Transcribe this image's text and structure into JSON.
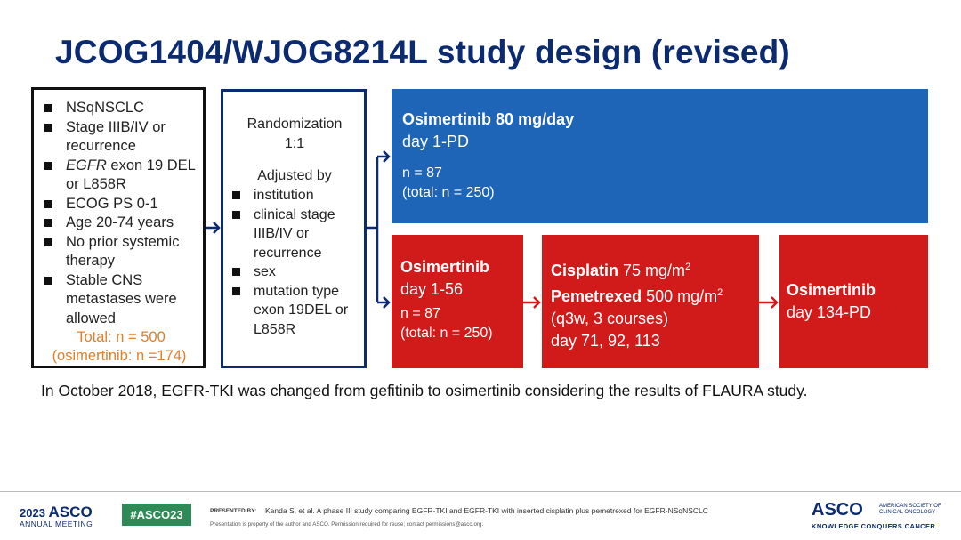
{
  "title": "JCOG1404/WJOG8214L study design (revised)",
  "eligibility": {
    "items": [
      "NSqNSCLC",
      "Stage IIIB/IV or recurrence",
      "EGFR exon 19 DEL or L858R",
      "ECOG PS 0-1",
      "Age 20-74 years",
      "No prior systemic therapy",
      "Stable CNS metastases were allowed"
    ],
    "egfr_italic": "EGFR",
    "egfr_rest": " exon 19 DEL or L858R",
    "total": "Total: n = 500",
    "total_osi": "(osimertinib: n =174)"
  },
  "randomization": {
    "title": "Randomization",
    "ratio": "1:1",
    "adjusted": "Adjusted by",
    "factors": [
      "institution",
      "clinical stage IIIB/IV or recurrence",
      "sex",
      "mutation type exon 19DEL or L858R"
    ]
  },
  "arm_a": {
    "drug": "Osimertinib",
    "dose": "80 mg/day",
    "days": "day 1-PD",
    "n": "n = 87",
    "total": "(total: n = 250)"
  },
  "arm_b": {
    "phase1": {
      "drug": "Osimertinib",
      "days": "day 1-56",
      "n": "n = 87",
      "total": "(total: n = 250)"
    },
    "phase2": {
      "drug1": "Cisplatin",
      "dose1": "75 mg/m",
      "drug2": "Pemetrexed",
      "dose2": "500 mg/m",
      "sup": "2",
      "schedule": "(q3w, 3 courses)",
      "days": "day 71, 92, 113"
    },
    "phase3": {
      "drug": "Osimertinib",
      "days": "day 134-PD"
    }
  },
  "note": "In October  2018, EGFR-TKI was changed from gefitinib to osimertinib considering the results of FLAURA study.",
  "footer": {
    "meeting_year": "2023",
    "meeting_brand": "ASCO",
    "meeting_sub": "ANNUAL MEETING",
    "hashtag": "#ASCO23",
    "presented_by": "PRESENTED BY:",
    "citation": "Kanda S, et al. A phase III study comparing EGFR-TKI and EGFR-TKI with inserted cisplatin plus pemetrexed for EGFR-NSqNSCLC",
    "permission": "Presentation is property of the author and ASCO. Permission required for reuse; contact permissions@asco.org.",
    "asco_logo": "ASCO",
    "asco_society": "AMERICAN SOCIETY OF CLINICAL ONCOLOGY",
    "tagline": "KNOWLEDGE CONQUERS CANCER"
  },
  "colors": {
    "navy": "#0b2a6f",
    "blue": "#1f65b7",
    "red": "#d11b1b",
    "orange": "#e07f2a",
    "green": "#2e8b57"
  }
}
